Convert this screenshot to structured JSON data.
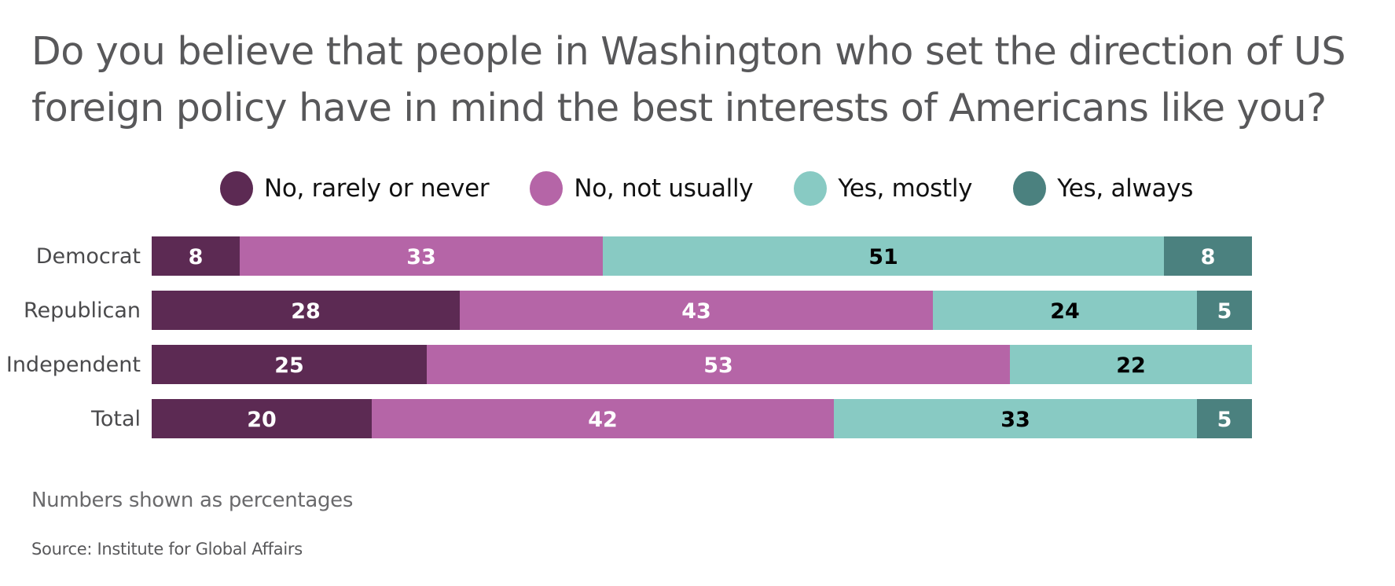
{
  "chart_data": {
    "type": "bar",
    "orientation": "horizontal",
    "stacked": true,
    "title": "Do you believe that people in Washington who set the direction of US foreign policy have in mind the best interests of Americans like you?",
    "title_lines": [
      "Do you believe that people in Washington who set the direction of US",
      "foreign policy have in mind the best interests of Americans like you?"
    ],
    "xlabel": "",
    "ylabel": "",
    "xlim": [
      0,
      100
    ],
    "grid": false,
    "legend_position": "top",
    "categories": [
      "Democrat",
      "Republican",
      "Independent",
      "Total"
    ],
    "series": [
      {
        "name": "No, rarely or never",
        "color": "#5c2a53",
        "label_color": "#ffffff",
        "values": [
          8,
          28,
          25,
          20
        ]
      },
      {
        "name": "No, not usually",
        "color": "#b565a7",
        "label_color": "#ffffff",
        "values": [
          33,
          43,
          53,
          42
        ]
      },
      {
        "name": "Yes, mostly",
        "color": "#88cac3",
        "label_color": "#000000",
        "values": [
          51,
          24,
          22,
          33
        ]
      },
      {
        "name": "Yes, always",
        "color": "#4b817f",
        "label_color": "#ffffff",
        "values": [
          8,
          5,
          0,
          5
        ]
      }
    ],
    "note": "Numbers shown as percentages",
    "source": "Source: Institute for Global Affairs"
  }
}
